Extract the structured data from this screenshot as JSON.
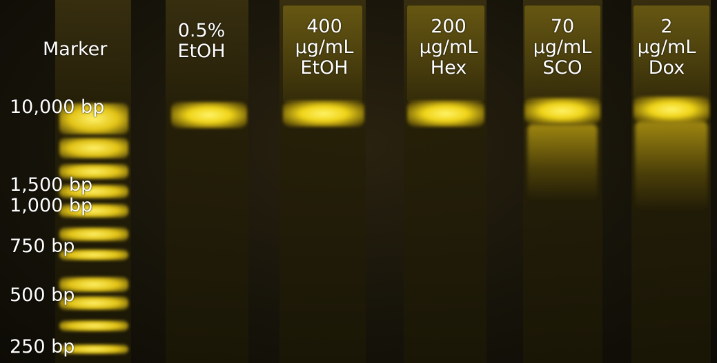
{
  "marker_label": "Marker",
  "lanes": [
    {
      "line1": "0.5%",
      "line2": "EtOH",
      "line3": ""
    },
    {
      "line1": "400",
      "line2": "µg/mL",
      "line3": "EtOH"
    },
    {
      "line1": "200",
      "line2": "µg/mL",
      "line3": "Hex"
    },
    {
      "line1": "70",
      "line2": "µg/mL",
      "line3": "SCO"
    },
    {
      "line1": "2",
      "line2": "µg/mL",
      "line3": "Dox"
    }
  ],
  "ladder_labels": [
    "10,000 bp",
    "1,500 bp",
    "1,000 bp",
    "750 bp",
    "500 bp",
    "250 bp"
  ],
  "colors": {
    "band": "#f2d81a",
    "background": "#14110a"
  }
}
